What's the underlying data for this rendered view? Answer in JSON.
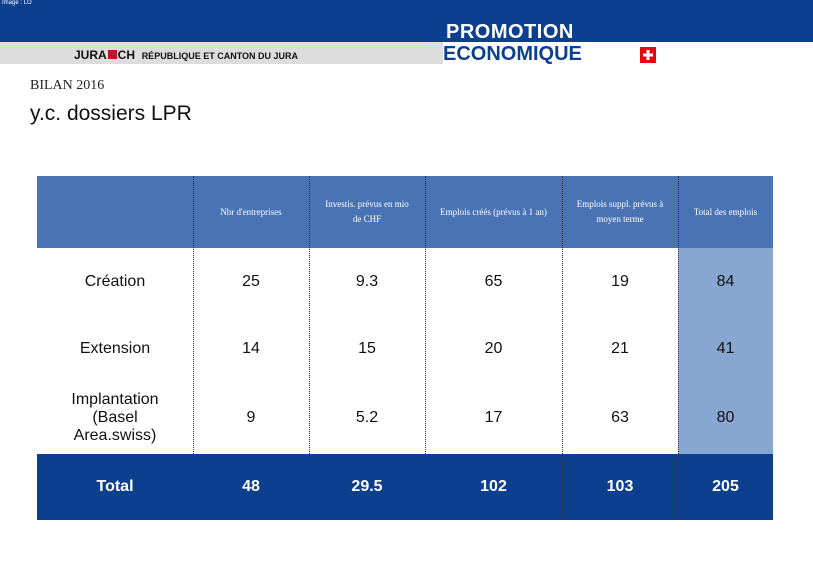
{
  "header": {
    "image_note": "Image : LO",
    "jura_logo": "JURA",
    "jura_ch": "CH",
    "jura_text": "RÉPUBLIQUE ET CANTON DU JURA",
    "promotion": "PROMOTION",
    "economique": "ECONOMIQUE"
  },
  "title": "BILAN 2016",
  "subtitle": "y.c. dossiers LPR",
  "table": {
    "columns": [
      "Nbr d'entreprises",
      "Investis. prévus en mio de CHF",
      "Emplois créés (prévus à 1 an)",
      "Emplois suppl. prévus à moyen terme",
      "Total des emplois"
    ],
    "rows": [
      {
        "label": "Création",
        "values": [
          25,
          9.3,
          65,
          19,
          84
        ]
      },
      {
        "label": "Extension",
        "values": [
          14,
          15,
          20,
          21,
          41
        ]
      },
      {
        "label": "Implantation (Basel Area.swiss)",
        "values": [
          9,
          5.2,
          17,
          63,
          80
        ]
      }
    ],
    "total": {
      "label": "Total",
      "values": [
        48,
        29.5,
        102,
        103,
        205
      ]
    }
  }
}
